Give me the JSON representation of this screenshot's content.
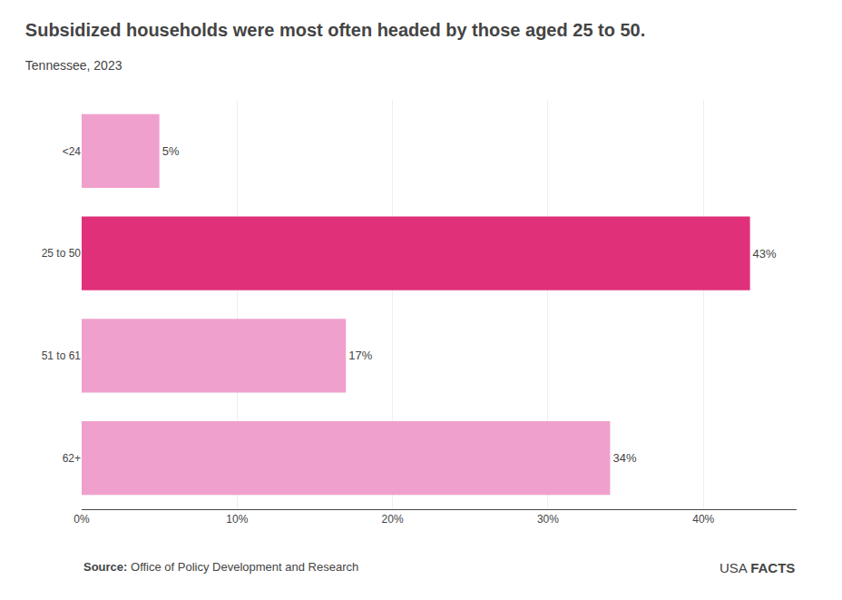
{
  "chart_data": {
    "type": "bar",
    "orientation": "horizontal",
    "title": "Subsidized households were most often headed by those aged 25 to 50.",
    "subtitle": "Tennessee, 2023",
    "categories": [
      "<24",
      "25 to 50",
      "51 to 61",
      "62+"
    ],
    "values": [
      5,
      43,
      17,
      34
    ],
    "value_labels": [
      "5%",
      "43%",
      "17%",
      "34%"
    ],
    "data_labels": true,
    "colors": [
      "#f0a0cc",
      "#e0307a",
      "#f0a0cc",
      "#f0a0cc"
    ],
    "xlim": [
      0,
      46
    ],
    "xticks": [
      {
        "value": 0,
        "label": "0%"
      },
      {
        "value": 10,
        "label": "10%"
      },
      {
        "value": 20,
        "label": "20%"
      },
      {
        "value": 30,
        "label": "30%"
      },
      {
        "value": 40,
        "label": "40%"
      }
    ],
    "grid": true,
    "annotations": [
      "Source:",
      "Office of Policy Development and Research",
      "USA",
      "FACTS"
    ]
  }
}
